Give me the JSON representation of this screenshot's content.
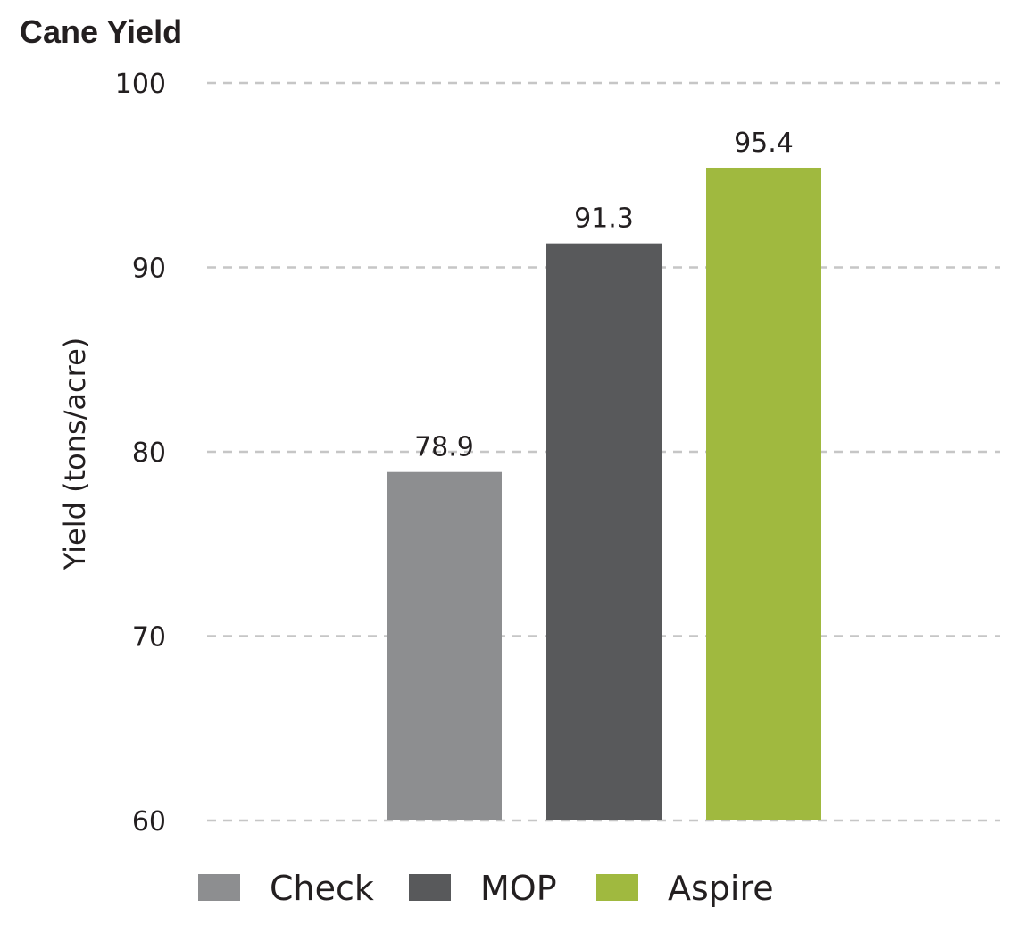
{
  "chart_data": {
    "type": "bar",
    "title": "Cane Yield",
    "ylabel": "Yield (tons/acre)",
    "xlabel": "",
    "ylim": [
      60,
      100
    ],
    "yticks": [
      100,
      90,
      80,
      70,
      60
    ],
    "grid": true,
    "legend_position": "bottom",
    "categories": [
      "Check",
      "MOP",
      "Aspire"
    ],
    "values": [
      78.9,
      91.3,
      95.4
    ],
    "value_labels": [
      "78.9",
      "91.3",
      "95.4"
    ],
    "colors": [
      "#8d8e90",
      "#58595b",
      "#a0b93f"
    ]
  }
}
